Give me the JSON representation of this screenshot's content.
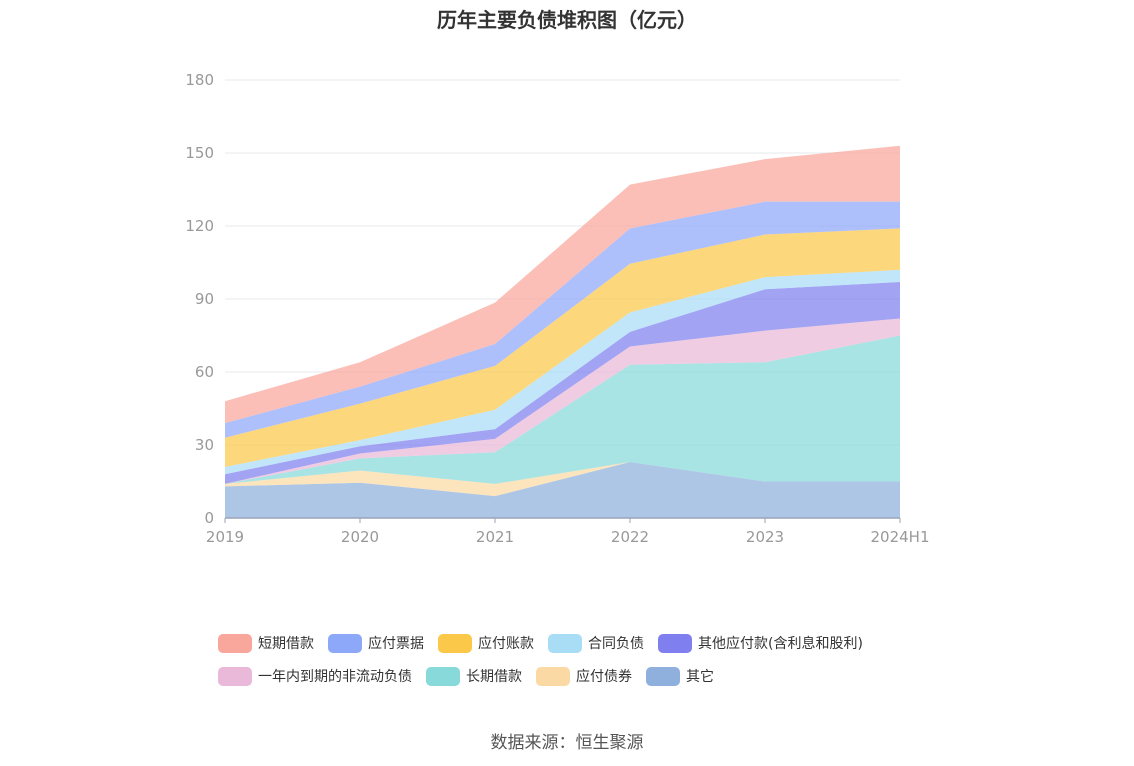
{
  "chart_data": {
    "type": "area",
    "stacked": true,
    "title": "历年主要负债堆积图（亿元）",
    "categories": [
      "2019",
      "2020",
      "2021",
      "2022",
      "2023",
      "2024H1"
    ],
    "yticks": [
      "0",
      "30",
      "60",
      "90",
      "120",
      "150",
      "180"
    ],
    "ylim": [
      0,
      180
    ],
    "grid": true,
    "legend_position": "bottom",
    "series": [
      {
        "name": "其它",
        "color": "#8fb0dc",
        "values": [
          13,
          14.5,
          9,
          23,
          15,
          15
        ]
      },
      {
        "name": "应付债券",
        "color": "#fbd9a4",
        "values": [
          1,
          5,
          5,
          0,
          0,
          0
        ]
      },
      {
        "name": "长期借款",
        "color": "#88d9d9",
        "values": [
          0,
          5,
          13,
          40,
          49,
          60
        ]
      },
      {
        "name": "一年内到期的非流动负债",
        "color": "#eab8d8",
        "values": [
          0,
          2,
          5.5,
          7.5,
          13,
          7
        ]
      },
      {
        "name": "其他应付款(含利息和股利)",
        "color": "#7f7ff0",
        "values": [
          4,
          3,
          4,
          6,
          17,
          15
        ]
      },
      {
        "name": "合同负债",
        "color": "#a9ddf6",
        "values": [
          3,
          2.5,
          8,
          8,
          5,
          5
        ]
      },
      {
        "name": "应付账款",
        "color": "#fbc84a",
        "values": [
          12,
          15,
          18,
          20,
          17.5,
          17
        ]
      },
      {
        "name": "应付票据",
        "color": "#8ea8f9",
        "values": [
          6,
          7,
          9,
          14.5,
          13.5,
          11
        ]
      },
      {
        "name": "短期借款",
        "color": "#f9a69c",
        "values": [
          9,
          10,
          17,
          18,
          17.5,
          23
        ]
      }
    ]
  },
  "legend": {
    "row1": [
      {
        "label": "短期借款",
        "color": "#f9a69c"
      },
      {
        "label": "应付票据",
        "color": "#8ea8f9"
      },
      {
        "label": "应付账款",
        "color": "#fbc84a"
      },
      {
        "label": "合同负债",
        "color": "#a9ddf6"
      },
      {
        "label": "其他应付款(含利息和股利)",
        "color": "#7f7ff0"
      }
    ],
    "row2": [
      {
        "label": "一年内到期的非流动负债",
        "color": "#eab8d8"
      },
      {
        "label": "长期借款",
        "color": "#88d9d9"
      },
      {
        "label": "应付债券",
        "color": "#fbd9a4"
      },
      {
        "label": "其它",
        "color": "#8fb0dc"
      }
    ]
  },
  "source_note": "数据来源：恒生聚源"
}
